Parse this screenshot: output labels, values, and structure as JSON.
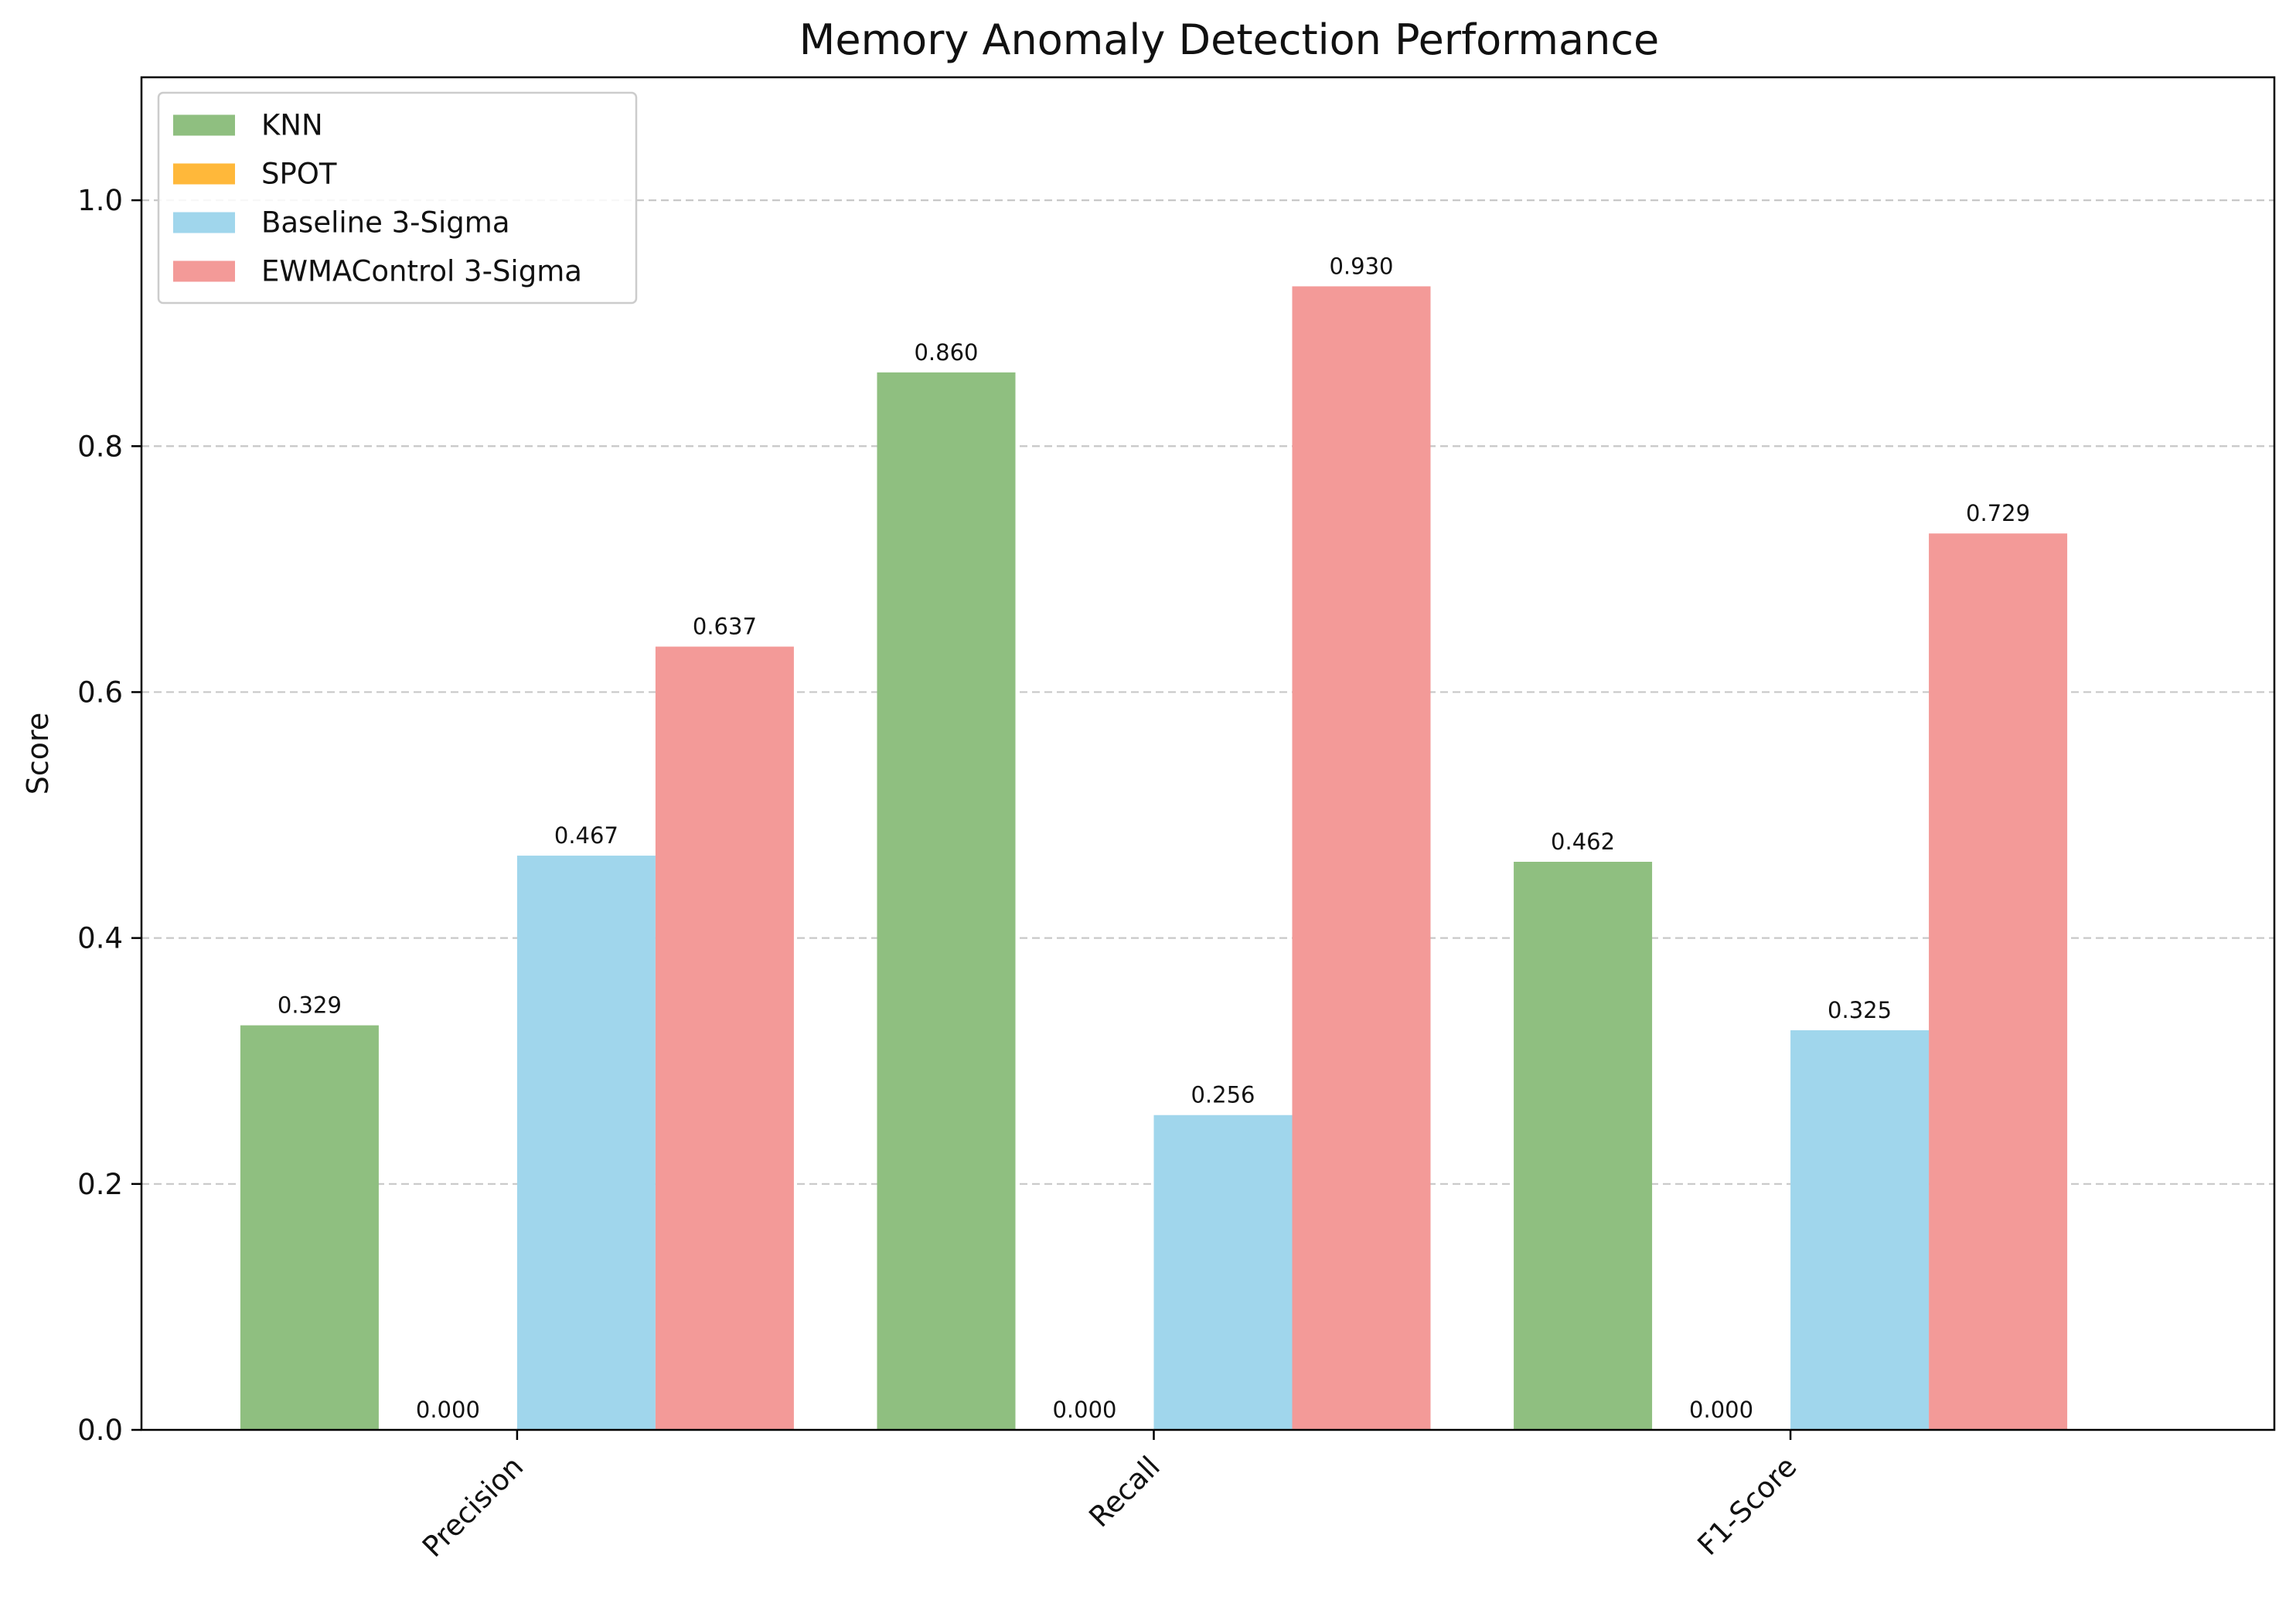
{
  "chart_data": {
    "type": "bar",
    "title": "Memory Anomaly Detection Performance",
    "xlabel": "",
    "ylabel": "Score",
    "categories": [
      "Precision",
      "Recall",
      "F1-Score"
    ],
    "series": [
      {
        "name": "KNN",
        "color": "#8fbf80",
        "values": [
          0.329,
          0.86,
          0.462
        ],
        "labels": [
          "0.329",
          "0.860",
          "0.462"
        ]
      },
      {
        "name": "SPOT",
        "color": "#ffb83a",
        "values": [
          0.0,
          0.0,
          0.0
        ],
        "labels": [
          "0.000",
          "0.000",
          "0.000"
        ]
      },
      {
        "name": "Baseline 3-Sigma",
        "color": "#a0d6ec",
        "values": [
          0.467,
          0.256,
          0.325
        ],
        "labels": [
          "0.467",
          "0.256",
          "0.325"
        ]
      },
      {
        "name": "EWMAControl 3-Sigma",
        "color": "#f39a98",
        "values": [
          0.637,
          0.93,
          0.729
        ],
        "labels": [
          "0.637",
          "0.930",
          "0.729"
        ]
      }
    ],
    "ylim": [
      0,
      1.1
    ],
    "yticks": [
      0.0,
      0.2,
      0.4,
      0.6,
      0.8,
      1.0
    ],
    "ytick_labels": [
      "0.0",
      "0.2",
      "0.4",
      "0.6",
      "0.8",
      "1.0"
    ],
    "grid": "y-dashed",
    "legend_position": "top-left"
  }
}
